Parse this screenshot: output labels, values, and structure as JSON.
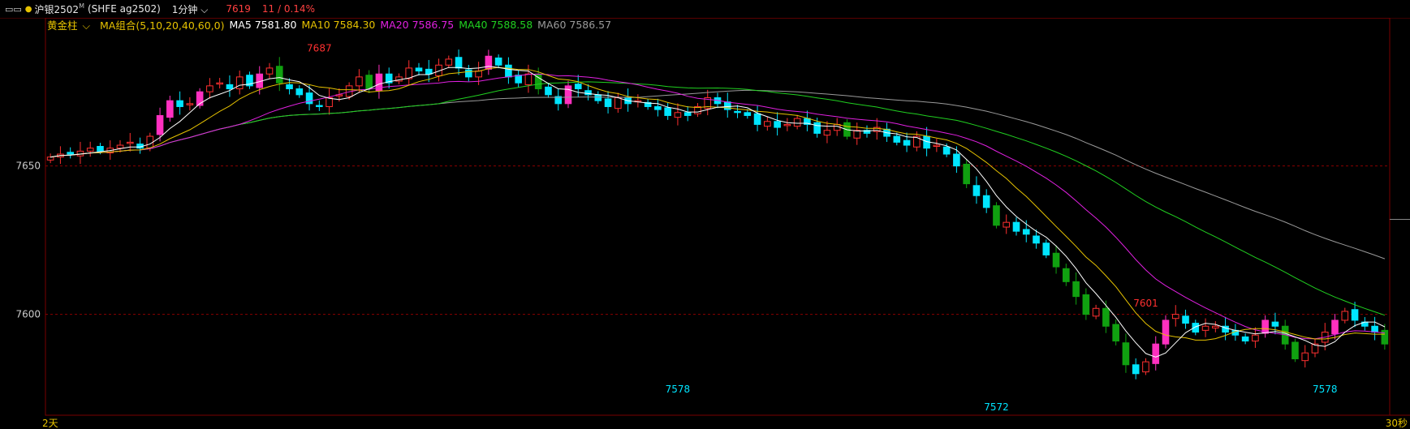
{
  "toolbar": {
    "symbol": "沪银2502",
    "symbol_sup": "M",
    "code": "(SHFE ag2502)",
    "period": "1分钟",
    "price": "7619",
    "change": "11 / 0.14%"
  },
  "legend": {
    "chart_type": "黄金柱",
    "group": "MA组合(5,10,20,40,60,0)",
    "items": [
      {
        "label": "MA5",
        "value": "7581.80",
        "color": "#ffffff"
      },
      {
        "label": "MA10",
        "value": "7584.30",
        "color": "#e6c200"
      },
      {
        "label": "MA20",
        "value": "7586.75",
        "color": "#e020e0"
      },
      {
        "label": "MA40",
        "value": "7588.58",
        "color": "#20d020"
      },
      {
        "label": "MA60",
        "value": "7586.57",
        "color": "#9a9a9a"
      }
    ]
  },
  "bottom": {
    "left": "2天",
    "right": "30秒"
  },
  "colors": {
    "up": "#ff3030",
    "down": "#00e5ff",
    "up_thick": "#ff30c0",
    "down_thick": "#10a010"
  },
  "chart_data": {
    "type": "candlestick",
    "ylim": [
      7566,
      7695
    ],
    "y_ticks": [
      7650,
      7600
    ],
    "x_count": 135,
    "markers": [
      {
        "text": "7687",
        "index": 27,
        "price": 7687,
        "pos": "above",
        "color": "#ff3030"
      },
      {
        "text": "7578",
        "index": 63,
        "price": 7578,
        "pos": "below",
        "color": "#00e5ff"
      },
      {
        "text": "7572",
        "index": 95,
        "price": 7572,
        "pos": "below",
        "color": "#00e5ff"
      },
      {
        "text": "7601",
        "index": 110,
        "price": 7601,
        "pos": "above",
        "color": "#ff3030"
      },
      {
        "text": "7578",
        "index": 128,
        "price": 7578,
        "pos": "below",
        "color": "#00e5ff"
      }
    ],
    "close": [
      7653,
      7654,
      7654,
      7655,
      7656,
      7655,
      7656,
      7657,
      7658,
      7656,
      7660,
      7667,
      7672,
      7670,
      7671,
      7675,
      7677,
      7678,
      7676,
      7680,
      7677,
      7681,
      7683,
      7678,
      7676,
      7674,
      7671,
      7670,
      7673,
      7674,
      7677,
      7680,
      7676,
      7681,
      7678,
      7680,
      7683,
      7682,
      7681,
      7684,
      7686,
      7683,
      7680,
      7682,
      7687,
      7684,
      7680,
      7678,
      7681,
      7676,
      7674,
      7671,
      7677,
      7676,
      7674,
      7672,
      7670,
      7673,
      7671,
      7672,
      7670,
      7669,
      7667,
      7668,
      7667,
      7670,
      7673,
      7671,
      7669,
      7668,
      7667,
      7664,
      7665,
      7663,
      7664,
      7666,
      7664,
      7661,
      7662,
      7664,
      7660,
      7662,
      7661,
      7663,
      7660,
      7658,
      7657,
      7660,
      7656,
      7657,
      7654,
      7650,
      7644,
      7640,
      7636,
      7630,
      7631,
      7628,
      7627,
      7624,
      7620,
      7616,
      7611,
      7606,
      7600,
      7602,
      7596,
      7591,
      7583,
      7580,
      7584,
      7590,
      7598,
      7600,
      7597,
      7594,
      7596,
      7596,
      7594,
      7593,
      7591,
      7593,
      7598,
      7596,
      7590,
      7585,
      7587,
      7590,
      7594,
      7598,
      7601,
      7598,
      7596,
      7594,
      7590
    ],
    "note": "series approximated from image"
  }
}
